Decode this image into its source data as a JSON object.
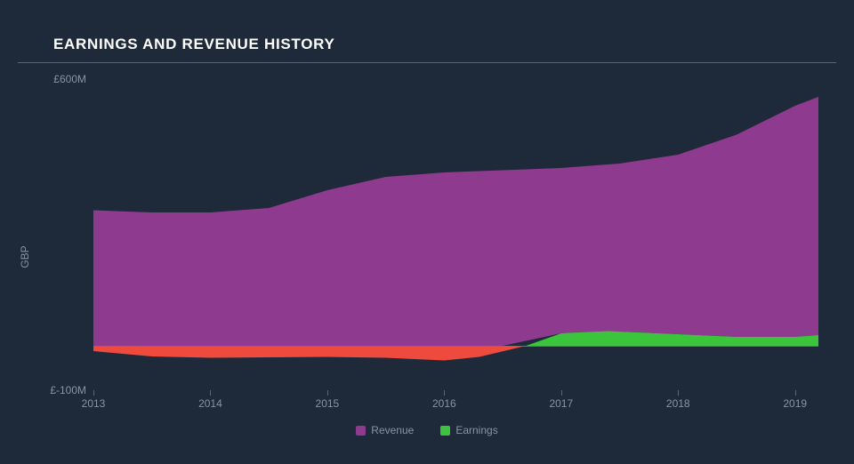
{
  "title": "EARNINGS AND REVENUE HISTORY",
  "ylabel": "GBP",
  "colors": {
    "background": "#1e2a3a",
    "title_text": "#ffffff",
    "axis_text": "#8a93a0",
    "grid_line": "#5a6472",
    "baseline": "#6a7482",
    "revenue_fill": "#8e3a8e",
    "earnings_pos_fill": "#3cc43c",
    "earnings_neg_fill": "#ee4b3e"
  },
  "chart": {
    "type": "area",
    "x_domain": [
      2013,
      2019.2
    ],
    "y_domain": [
      -100,
      600
    ],
    "y_baseline": 0,
    "y_ticks": [
      {
        "v": -100,
        "label": "£-100M"
      },
      {
        "v": 600,
        "label": "£600M"
      }
    ],
    "x_ticks": [
      2013,
      2014,
      2015,
      2016,
      2017,
      2018,
      2019
    ],
    "series": {
      "revenue": {
        "label": "Revenue",
        "points": [
          {
            "x": 2013.0,
            "y": 305
          },
          {
            "x": 2013.5,
            "y": 300
          },
          {
            "x": 2014.0,
            "y": 300
          },
          {
            "x": 2014.5,
            "y": 310
          },
          {
            "x": 2015.0,
            "y": 350
          },
          {
            "x": 2015.5,
            "y": 380
          },
          {
            "x": 2016.0,
            "y": 390
          },
          {
            "x": 2016.5,
            "y": 395
          },
          {
            "x": 2017.0,
            "y": 400
          },
          {
            "x": 2017.5,
            "y": 410
          },
          {
            "x": 2018.0,
            "y": 430
          },
          {
            "x": 2018.5,
            "y": 475
          },
          {
            "x": 2019.0,
            "y": 540
          },
          {
            "x": 2019.2,
            "y": 560
          }
        ]
      },
      "earnings": {
        "label": "Earnings",
        "points": [
          {
            "x": 2013.0,
            "y": -12
          },
          {
            "x": 2013.5,
            "y": -24
          },
          {
            "x": 2014.0,
            "y": -27
          },
          {
            "x": 2014.5,
            "y": -26
          },
          {
            "x": 2015.0,
            "y": -25
          },
          {
            "x": 2015.5,
            "y": -27
          },
          {
            "x": 2016.0,
            "y": -33
          },
          {
            "x": 2016.3,
            "y": -25
          },
          {
            "x": 2016.7,
            "y": 0
          },
          {
            "x": 2017.0,
            "y": 28
          },
          {
            "x": 2017.4,
            "y": 33
          },
          {
            "x": 2018.0,
            "y": 26
          },
          {
            "x": 2018.5,
            "y": 20
          },
          {
            "x": 2019.0,
            "y": 20
          },
          {
            "x": 2019.2,
            "y": 24
          }
        ]
      }
    }
  },
  "legend": [
    "Revenue",
    "Earnings"
  ]
}
